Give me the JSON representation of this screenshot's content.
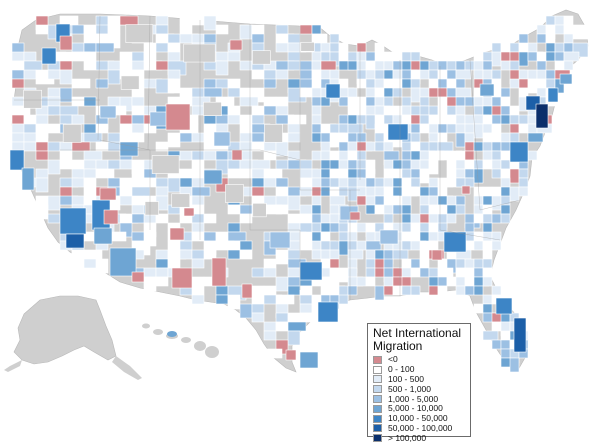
{
  "colors": {
    "ocean": "#ffffff",
    "no_data": "#cfcfcf",
    "border": "#ffffff",
    "state_border": "#9a9a9a",
    "neg": "#d4898f",
    "c1": "#ffffff",
    "c2": "#e2ecf7",
    "c3": "#c3d8ee",
    "c4": "#9cc0e3",
    "c5": "#6ea5d3",
    "c6": "#3d85c6",
    "c7": "#1c5fa8",
    "c8": "#0b2f6b"
  },
  "legend": {
    "title": "Net International Migration",
    "items": [
      {
        "label": "<0",
        "color": "#d4898f"
      },
      {
        "label": "0 - 100",
        "color": "#ffffff"
      },
      {
        "label": "100 - 500",
        "color": "#e2ecf7"
      },
      {
        "label": "500 - 1,000",
        "color": "#c3d8ee"
      },
      {
        "label": "1,000 - 5,000",
        "color": "#9cc0e3"
      },
      {
        "label": "5,000 - 10,000",
        "color": "#6ea5d3"
      },
      {
        "label": "10,000 - 50,000",
        "color": "#3d85c6"
      },
      {
        "label": "50,000 - 100,000",
        "color": "#1c5fa8"
      },
      {
        "label": "> 100,000",
        "color": "#0b2f6b"
      }
    ]
  }
}
